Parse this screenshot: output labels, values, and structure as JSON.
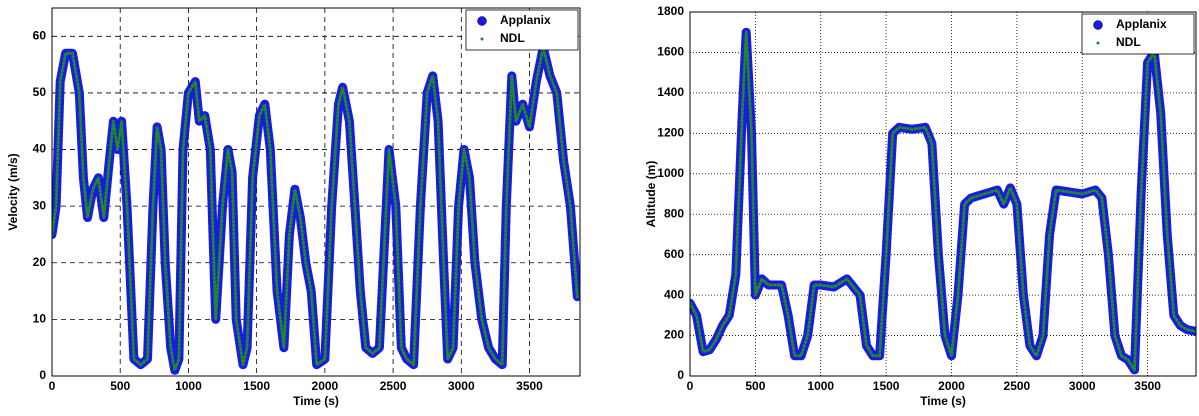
{
  "chart_data": [
    {
      "type": "line",
      "xlabel": "Time (s)",
      "ylabel": "Velocity (m/s)",
      "x": [
        0,
        30,
        60,
        100,
        150,
        200,
        230,
        260,
        300,
        340,
        380,
        420,
        450,
        480,
        510,
        550,
        600,
        650,
        700,
        740,
        770,
        800,
        830,
        870,
        900,
        930,
        960,
        1000,
        1050,
        1080,
        1120,
        1160,
        1200,
        1250,
        1290,
        1320,
        1350,
        1400,
        1430,
        1470,
        1520,
        1560,
        1600,
        1650,
        1700,
        1740,
        1780,
        1820,
        1860,
        1900,
        1940,
        2000,
        2050,
        2100,
        2130,
        2180,
        2220,
        2260,
        2300,
        2350,
        2400,
        2430,
        2470,
        2520,
        2560,
        2600,
        2650,
        2700,
        2750,
        2790,
        2830,
        2870,
        2900,
        2940,
        2980,
        3020,
        3060,
        3100,
        3150,
        3200,
        3250,
        3300,
        3330,
        3370,
        3400,
        3450,
        3500,
        3550,
        3600,
        3650,
        3700,
        3750,
        3800,
        3850
      ],
      "series": [
        {
          "name": "Applanix",
          "color": "#1a1ae6",
          "values": [
            25,
            30,
            52,
            57,
            57,
            50,
            35,
            28,
            33,
            35,
            28,
            38,
            45,
            40,
            45,
            30,
            3,
            2,
            3,
            30,
            44,
            40,
            20,
            5,
            1,
            3,
            40,
            50,
            52,
            45,
            46,
            40,
            10,
            30,
            40,
            36,
            10,
            2,
            5,
            35,
            46,
            48,
            40,
            15,
            5,
            25,
            33,
            28,
            20,
            15,
            2,
            3,
            30,
            48,
            51,
            45,
            30,
            15,
            5,
            4,
            5,
            20,
            40,
            30,
            5,
            3,
            2,
            30,
            50,
            53,
            45,
            20,
            3,
            5,
            30,
            40,
            35,
            20,
            10,
            5,
            3,
            2,
            30,
            53,
            45,
            48,
            44,
            52,
            58,
            53,
            50,
            38,
            30,
            14
          ]
        },
        {
          "name": "NDL",
          "color": "#1e8c1e",
          "values": [
            25,
            30,
            52,
            57,
            57,
            50,
            35,
            28,
            33,
            35,
            28,
            38,
            45,
            40,
            45,
            30,
            3,
            2,
            3,
            30,
            44,
            40,
            20,
            5,
            1,
            3,
            40,
            50,
            52,
            45,
            46,
            40,
            10,
            30,
            40,
            36,
            10,
            2,
            5,
            35,
            46,
            48,
            40,
            15,
            5,
            25,
            33,
            28,
            20,
            15,
            2,
            3,
            30,
            48,
            51,
            45,
            30,
            15,
            5,
            4,
            5,
            20,
            40,
            30,
            5,
            3,
            2,
            30,
            50,
            53,
            45,
            20,
            3,
            5,
            30,
            40,
            35,
            20,
            10,
            5,
            3,
            2,
            30,
            53,
            45,
            48,
            44,
            52,
            58,
            53,
            50,
            38,
            30,
            14
          ]
        }
      ],
      "xlim": [
        0,
        3870
      ],
      "xticks": [
        0,
        500,
        1000,
        1500,
        2000,
        2500,
        3000,
        3500
      ],
      "ylim": [
        0,
        65
      ],
      "yticks": [
        0,
        10,
        20,
        30,
        40,
        50,
        60
      ],
      "grid": true,
      "legend": "upper right"
    },
    {
      "type": "line",
      "xlabel": "Time (s)",
      "ylabel": "Altitude (m)",
      "x": [
        0,
        50,
        100,
        150,
        200,
        250,
        300,
        350,
        400,
        430,
        470,
        500,
        550,
        600,
        700,
        750,
        800,
        850,
        900,
        950,
        1000,
        1100,
        1200,
        1300,
        1350,
        1400,
        1450,
        1500,
        1550,
        1600,
        1700,
        1800,
        1850,
        1900,
        1950,
        2000,
        2050,
        2100,
        2150,
        2250,
        2350,
        2400,
        2450,
        2500,
        2550,
        2600,
        2650,
        2700,
        2750,
        2800,
        2900,
        3000,
        3100,
        3150,
        3200,
        3250,
        3300,
        3350,
        3400,
        3450,
        3500,
        3550,
        3600,
        3650,
        3700,
        3750,
        3800,
        3870
      ],
      "series": [
        {
          "name": "Applanix",
          "color": "#1a1ae6",
          "values": [
            360,
            300,
            120,
            130,
            180,
            250,
            300,
            500,
            1300,
            1700,
            1200,
            400,
            480,
            450,
            450,
            300,
            100,
            100,
            200,
            450,
            450,
            440,
            480,
            400,
            150,
            100,
            100,
            600,
            1200,
            1230,
            1220,
            1230,
            1150,
            600,
            200,
            100,
            400,
            850,
            880,
            900,
            920,
            850,
            930,
            850,
            400,
            150,
            100,
            200,
            700,
            920,
            910,
            900,
            920,
            880,
            600,
            200,
            100,
            80,
            30,
            900,
            1550,
            1600,
            1300,
            700,
            300,
            250,
            230,
            220
          ]
        },
        {
          "name": "NDL",
          "color": "#1e8c1e",
          "values": [
            360,
            300,
            120,
            130,
            180,
            250,
            300,
            500,
            1300,
            1700,
            1200,
            400,
            480,
            450,
            450,
            300,
            100,
            100,
            200,
            450,
            450,
            440,
            480,
            400,
            150,
            100,
            100,
            600,
            1200,
            1230,
            1220,
            1230,
            1150,
            600,
            200,
            100,
            400,
            850,
            880,
            900,
            920,
            850,
            930,
            850,
            400,
            150,
            100,
            200,
            700,
            920,
            910,
            900,
            920,
            880,
            600,
            200,
            100,
            80,
            30,
            900,
            1550,
            1600,
            1300,
            700,
            300,
            250,
            230,
            220
          ]
        }
      ],
      "xlim": [
        0,
        3870
      ],
      "xticks": [
        0,
        500,
        1000,
        1500,
        2000,
        2500,
        3000,
        3500
      ],
      "ylim": [
        0,
        1800
      ],
      "yticks": [
        0,
        200,
        400,
        600,
        800,
        1000,
        1200,
        1400,
        1600,
        1800
      ],
      "grid": true,
      "legend": "upper right"
    }
  ]
}
